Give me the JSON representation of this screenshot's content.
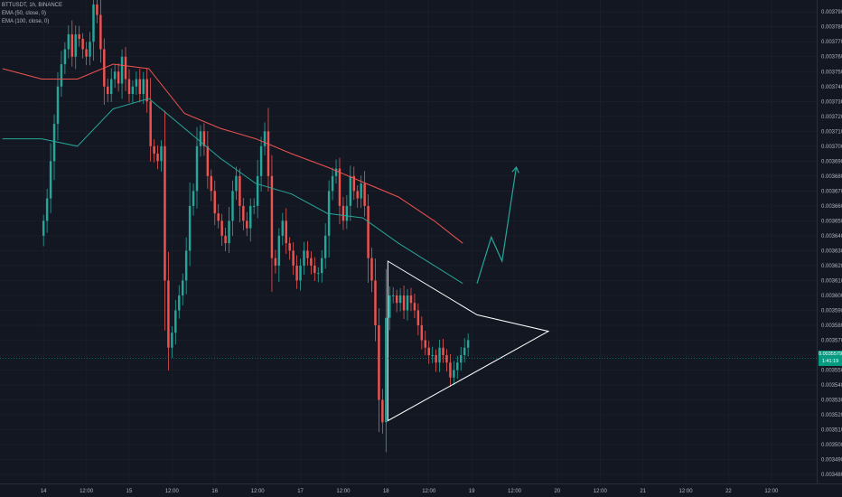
{
  "legend": {
    "symbol": "BTTUSDT, 1h, BINANCE",
    "ema1": "EMA (50, close, 0)",
    "ema2": "EMA (100, close, 0)"
  },
  "current_price": {
    "value": "0.0035579",
    "countdown": "1:41:19",
    "y": 0.0035579
  },
  "colors": {
    "background": "#131722",
    "up": "#26a69a",
    "down": "#ef5350",
    "ema_fast": "#26a69a",
    "ema_slow": "#ef5350",
    "pattern": "#ffffff",
    "projection": "#26a69a",
    "price_tag": "#089981"
  },
  "chart_data": {
    "type": "candlestick",
    "y_ticks": [
      "0.003790",
      "0.003780",
      "0.003770",
      "0.003760",
      "0.003750",
      "0.003740",
      "0.003730",
      "0.003720",
      "0.003710",
      "0.003700",
      "0.003690",
      "0.003680",
      "0.003670",
      "0.003660",
      "0.003650",
      "0.003640",
      "0.003630",
      "0.003620",
      "0.003610",
      "0.003600",
      "0.003590",
      "0.003580",
      "0.003570",
      "0.003560",
      "0.003550",
      "0.003540",
      "0.003530",
      "0.003520",
      "0.003510",
      "0.003500",
      "0.003490",
      "0.003480"
    ],
    "x_ticks": [
      {
        "label": "14",
        "t": 0.5
      },
      {
        "label": "12:00",
        "t": 12.5
      },
      {
        "label": "15",
        "t": 24.5
      },
      {
        "label": "12:00",
        "t": 36.5
      },
      {
        "label": "16",
        "t": 48.5
      },
      {
        "label": "12:00",
        "t": 60.5
      },
      {
        "label": "17",
        "t": 72.5
      },
      {
        "label": "12:00",
        "t": 84.5
      },
      {
        "label": "18",
        "t": 96.5
      },
      {
        "label": "12:00",
        "t": 108.5
      },
      {
        "label": "19",
        "t": 120.5
      },
      {
        "label": "12:00",
        "t": 132.5
      },
      {
        "label": "20",
        "t": 144.5
      },
      {
        "label": "12:00",
        "t": 156.5
      },
      {
        "label": "21",
        "t": 168.5
      },
      {
        "label": "12:00",
        "t": 180.5
      },
      {
        "label": "22",
        "t": 192.5
      },
      {
        "label": "12:00",
        "t": 204.5
      }
    ],
    "ylim": [
      0.003474,
      0.003798
    ],
    "xlim": [
      -11.7,
      217.2
    ],
    "closes": [
      0.00365,
      0.003665,
      0.00369,
      0.003715,
      0.00374,
      0.003755,
      0.003765,
      0.003775,
      0.00376,
      0.003775,
      0.003772,
      0.003765,
      0.00376,
      0.00377,
      0.003795,
      0.003788,
      0.003765,
      0.00374,
      0.003735,
      0.003745,
      0.00375,
      0.003742,
      0.00376,
      0.003745,
      0.003735,
      0.00374,
      0.003745,
      0.003735,
      0.003745,
      0.00373,
      0.0037,
      0.003695,
      0.00369,
      0.0037,
      0.00361,
      0.003565,
      0.003575,
      0.00359,
      0.0036,
      0.00361,
      0.00363,
      0.00366,
      0.00367,
      0.0037,
      0.00371,
      0.0037,
      0.00368,
      0.00367,
      0.003655,
      0.00365,
      0.00364,
      0.003635,
      0.00365,
      0.00367,
      0.00368,
      0.00366,
      0.00365,
      0.003645,
      0.00366,
      0.00366,
      0.00368,
      0.0037,
      0.00371,
      0.00368,
      0.003625,
      0.00362,
      0.00364,
      0.00365,
      0.003635,
      0.00363,
      0.00362,
      0.00361,
      0.00362,
      0.00363,
      0.003625,
      0.00362,
      0.003615,
      0.003615,
      0.003625,
      0.00364,
      0.00367,
      0.00368,
      0.003685,
      0.00366,
      0.00365,
      0.00366,
      0.00368,
      0.00367,
      0.003665,
      0.003675,
      0.00366,
      0.003625,
      0.00361,
      0.00358,
      0.00353,
      0.003515,
      0.003585,
      0.0036,
      0.0036,
      0.003595,
      0.0036,
      0.00359,
      0.0036,
      0.003595,
      0.00359,
      0.00358,
      0.00357,
      0.003565,
      0.00356,
      0.00356,
      0.003555,
      0.003565,
      0.00356,
      0.003555,
      0.003545,
      0.00355,
      0.003555,
      0.00356,
      0.003565,
      0.00357
    ],
    "opens_first": 0.00364,
    "ema_fast": {
      "name": "EMA (50, close, 0)",
      "points": [
        [
          -11,
          0.003705
        ],
        [
          0,
          0.003705
        ],
        [
          10,
          0.0037
        ],
        [
          20,
          0.003725
        ],
        [
          30,
          0.003732
        ],
        [
          40,
          0.003712
        ],
        [
          50,
          0.003692
        ],
        [
          60,
          0.003675
        ],
        [
          70,
          0.003668
        ],
        [
          80,
          0.003655
        ],
        [
          90,
          0.003652
        ],
        [
          100,
          0.003635
        ],
        [
          110,
          0.00362
        ],
        [
          118,
          0.003608
        ]
      ]
    },
    "ema_slow": {
      "name": "EMA (100, close, 0)",
      "points": [
        [
          -11,
          0.003752
        ],
        [
          0,
          0.003745
        ],
        [
          10,
          0.003745
        ],
        [
          20,
          0.003755
        ],
        [
          30,
          0.003752
        ],
        [
          40,
          0.003722
        ],
        [
          50,
          0.003712
        ],
        [
          60,
          0.003705
        ],
        [
          70,
          0.003695
        ],
        [
          80,
          0.003686
        ],
        [
          90,
          0.003676
        ],
        [
          100,
          0.003666
        ],
        [
          110,
          0.00365
        ],
        [
          118,
          0.003635
        ]
      ]
    },
    "triangle": [
      [
        97,
        0.003623
      ],
      [
        122,
        0.003587
      ],
      [
        142,
        0.003576
      ],
      [
        97,
        0.003516
      ]
    ],
    "projection": [
      [
        122,
        0.003608
      ],
      [
        126,
        0.003639
      ],
      [
        129,
        0.003623
      ],
      [
        133,
        0.003686
      ]
    ]
  }
}
